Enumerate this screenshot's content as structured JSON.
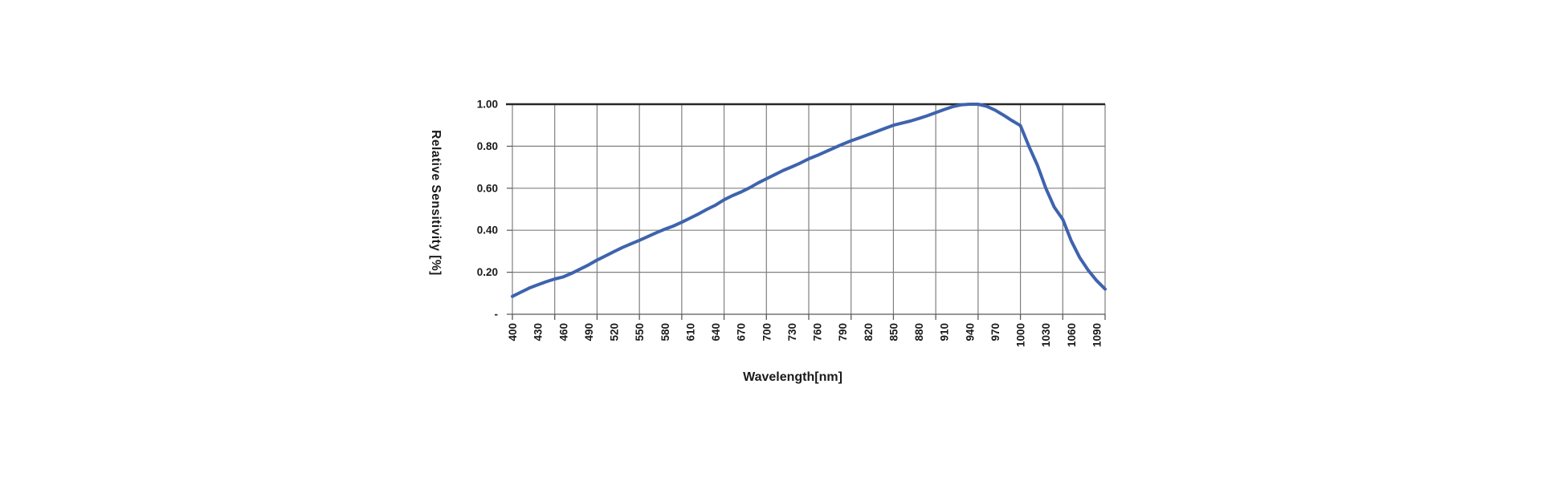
{
  "chart_data": {
    "type": "line",
    "title": "",
    "xlabel": "Wavelength[nm]",
    "ylabel": "Relative Sensitivity [%]",
    "grid": true,
    "legend": "none",
    "x_axis": {
      "min": 400,
      "max": 1100,
      "gridline_interval": 50,
      "tick_mark_interval": 50,
      "labels_rotated_90": true,
      "label_ticks": [
        400,
        430,
        460,
        490,
        520,
        550,
        580,
        610,
        640,
        670,
        700,
        730,
        760,
        790,
        820,
        850,
        880,
        910,
        940,
        970,
        1000,
        1030,
        1060,
        1090
      ]
    },
    "y_axis": {
      "min": 0,
      "max": 1.0,
      "ticks": [
        {
          "value": 1.0,
          "label": "1.00"
        },
        {
          "value": 0.8,
          "label": "0.80"
        },
        {
          "value": 0.6,
          "label": "0.60"
        },
        {
          "value": 0.4,
          "label": "0.40"
        },
        {
          "value": 0.2,
          "label": "0.20"
        },
        {
          "value": 0.0,
          "label": "-"
        }
      ]
    },
    "series": [
      {
        "name": "Relative Sensitivity",
        "color": "#3E63AE",
        "x": [
          400,
          410,
          420,
          430,
          440,
          450,
          460,
          470,
          480,
          490,
          500,
          510,
          520,
          530,
          540,
          550,
          560,
          570,
          580,
          590,
          600,
          610,
          620,
          630,
          640,
          650,
          660,
          670,
          680,
          690,
          700,
          710,
          720,
          730,
          740,
          750,
          760,
          770,
          780,
          790,
          800,
          810,
          820,
          830,
          840,
          850,
          860,
          870,
          880,
          890,
          900,
          910,
          920,
          930,
          940,
          950,
          960,
          970,
          980,
          990,
          1000,
          1010,
          1020,
          1030,
          1040,
          1050,
          1060,
          1070,
          1080,
          1090,
          1100
        ],
        "y": [
          0.085,
          0.105,
          0.125,
          0.14,
          0.155,
          0.168,
          0.178,
          0.195,
          0.215,
          0.235,
          0.258,
          0.278,
          0.298,
          0.318,
          0.335,
          0.352,
          0.37,
          0.388,
          0.405,
          0.42,
          0.438,
          0.458,
          0.478,
          0.5,
          0.52,
          0.545,
          0.565,
          0.582,
          0.602,
          0.625,
          0.645,
          0.665,
          0.685,
          0.702,
          0.72,
          0.74,
          0.756,
          0.774,
          0.792,
          0.81,
          0.826,
          0.84,
          0.855,
          0.87,
          0.885,
          0.9,
          0.91,
          0.92,
          0.932,
          0.945,
          0.96,
          0.975,
          0.988,
          0.997,
          1.0,
          1.0,
          0.99,
          0.972,
          0.948,
          0.922,
          0.898,
          0.8,
          0.71,
          0.6,
          0.51,
          0.452,
          0.35,
          0.27,
          0.21,
          0.16,
          0.12
        ]
      }
    ]
  },
  "colors": {
    "background": "#ffffff",
    "gridline": "#808080",
    "axis_line": "#595959",
    "plot_top_border": "#262626",
    "text": "#1a1a1a",
    "series_line": "#3E63AE"
  }
}
